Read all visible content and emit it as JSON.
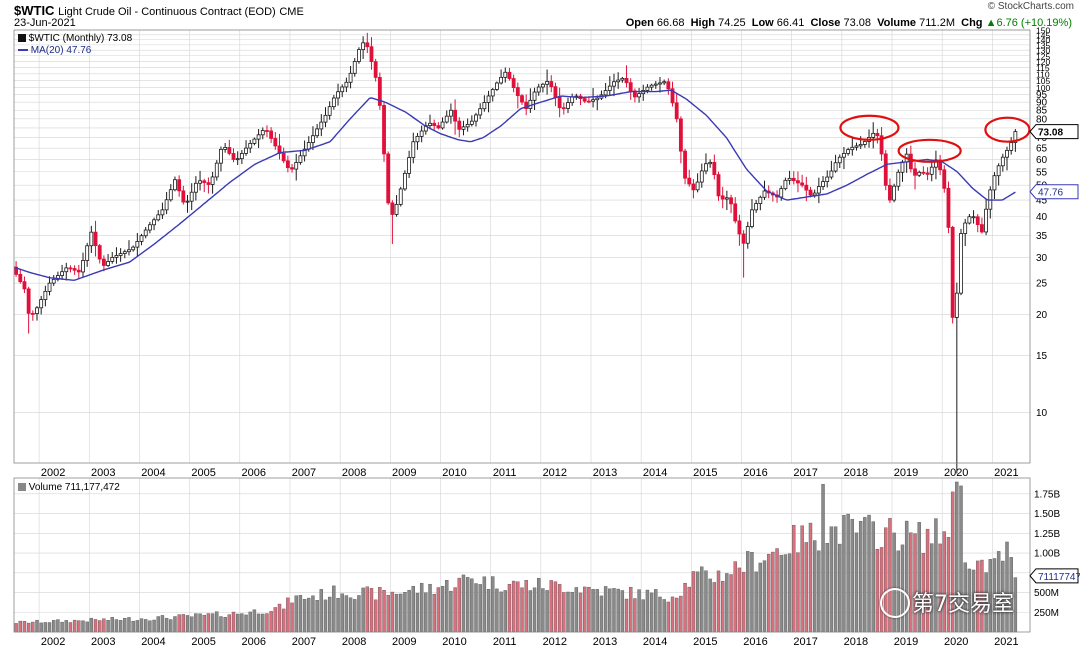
{
  "header": {
    "symbol": "$WTIC",
    "description": "Light Crude Oil - Continuous Contract (EOD)",
    "exchange": "CME",
    "watermark": "© StockCharts.com",
    "date": "23-Jun-2021",
    "open_label": "Open",
    "open": "66.68",
    "high_label": "High",
    "high": "74.25",
    "low_label": "Low",
    "low": "66.41",
    "close_label": "Close",
    "close": "73.08",
    "volume_label": "Volume",
    "volume": "711.2M",
    "chg_label": "Chg",
    "chg": "▲6.76 (+10.19%)"
  },
  "legend": {
    "price": "$WTIC (Monthly) 73.08",
    "ma": "MA(20) 47.76",
    "volume": "Volume 711,177,472"
  },
  "badges": {
    "last_price": "73.08",
    "ma_value": "47.76",
    "volume_value": "711177472"
  },
  "brand": {
    "text": "第7交易室"
  },
  "colors": {
    "up": "#1a1a1a",
    "down": "#e0103a",
    "ma": "#3a3ab5",
    "vol_up": "#8a8a8a",
    "vol_down": "#d9707e",
    "grid": "#d4d4d4",
    "highlight": "#e01010"
  },
  "chart_data": [
    {
      "type": "candlestick",
      "title": "$WTIC (Monthly)",
      "scale": "log",
      "ylim": [
        7,
        150
      ],
      "y_ticks": [
        10,
        15,
        20,
        25,
        30,
        35,
        40,
        45,
        50,
        55,
        60,
        65,
        70,
        75,
        80,
        85,
        90,
        95,
        100,
        105,
        110,
        115,
        120,
        125,
        130,
        135,
        140,
        145,
        150
      ],
      "x_ticks": [
        "2002",
        "2003",
        "2004",
        "2005",
        "2006",
        "2007",
        "2008",
        "2009",
        "2010",
        "2011",
        "2012",
        "2013",
        "2014",
        "2015",
        "2016",
        "2017",
        "2018",
        "2019",
        "2020",
        "2021"
      ],
      "xlim_years": [
        2001.5,
        2021.75
      ],
      "grid": true,
      "anchors": [
        [
          2001.5,
          28
        ],
        [
          2001.75,
          24
        ],
        [
          2001.85,
          19.5
        ],
        [
          2002.0,
          21
        ],
        [
          2002.25,
          25
        ],
        [
          2002.6,
          28
        ],
        [
          2002.85,
          27
        ],
        [
          2003.08,
          36
        ],
        [
          2003.3,
          28
        ],
        [
          2003.5,
          30
        ],
        [
          2003.9,
          32
        ],
        [
          2004.2,
          37
        ],
        [
          2004.5,
          42
        ],
        [
          2004.75,
          52
        ],
        [
          2004.95,
          43
        ],
        [
          2005.2,
          52
        ],
        [
          2005.45,
          50
        ],
        [
          2005.7,
          67
        ],
        [
          2005.95,
          59
        ],
        [
          2006.2,
          66
        ],
        [
          2006.55,
          75
        ],
        [
          2006.9,
          60
        ],
        [
          2007.05,
          55
        ],
        [
          2007.4,
          67
        ],
        [
          2007.75,
          82
        ],
        [
          2007.95,
          95
        ],
        [
          2008.2,
          105
        ],
        [
          2008.45,
          135
        ],
        [
          2008.55,
          139
        ],
        [
          2008.7,
          115
        ],
        [
          2008.8,
          100
        ],
        [
          2008.9,
          68
        ],
        [
          2008.98,
          45
        ],
        [
          2009.1,
          40
        ],
        [
          2009.3,
          52
        ],
        [
          2009.5,
          68
        ],
        [
          2009.8,
          78
        ],
        [
          2010.0,
          75
        ],
        [
          2010.25,
          85
        ],
        [
          2010.4,
          74
        ],
        [
          2010.65,
          78
        ],
        [
          2010.9,
          89
        ],
        [
          2011.2,
          105
        ],
        [
          2011.35,
          112
        ],
        [
          2011.55,
          96
        ],
        [
          2011.75,
          86
        ],
        [
          2011.95,
          99
        ],
        [
          2012.2,
          105
        ],
        [
          2012.45,
          84
        ],
        [
          2012.7,
          95
        ],
        [
          2012.95,
          90
        ],
        [
          2013.2,
          93
        ],
        [
          2013.5,
          104
        ],
        [
          2013.7,
          107
        ],
        [
          2013.9,
          93
        ],
        [
          2014.2,
          101
        ],
        [
          2014.5,
          104
        ],
        [
          2014.6,
          98
        ],
        [
          2014.75,
          80
        ],
        [
          2014.9,
          53
        ],
        [
          2015.1,
          48
        ],
        [
          2015.3,
          58
        ],
        [
          2015.45,
          59
        ],
        [
          2015.6,
          45
        ],
        [
          2015.8,
          46
        ],
        [
          2015.95,
          37
        ],
        [
          2016.08,
          33
        ],
        [
          2016.25,
          42
        ],
        [
          2016.5,
          48
        ],
        [
          2016.75,
          46
        ],
        [
          2016.95,
          53
        ],
        [
          2017.25,
          50
        ],
        [
          2017.45,
          46
        ],
        [
          2017.6,
          50
        ],
        [
          2017.8,
          54
        ],
        [
          2017.95,
          60
        ],
        [
          2018.2,
          65
        ],
        [
          2018.45,
          67
        ],
        [
          2018.7,
          73
        ],
        [
          2018.8,
          69
        ],
        [
          2018.9,
          51
        ],
        [
          2019.0,
          45
        ],
        [
          2019.2,
          57
        ],
        [
          2019.35,
          63
        ],
        [
          2019.45,
          53
        ],
        [
          2019.6,
          55
        ],
        [
          2019.75,
          54
        ],
        [
          2019.95,
          61
        ],
        [
          2020.05,
          51
        ],
        [
          2020.15,
          45
        ],
        [
          2020.22,
          20
        ],
        [
          2020.3,
          19
        ],
        [
          2020.4,
          35
        ],
        [
          2020.55,
          40
        ],
        [
          2020.7,
          40
        ],
        [
          2020.82,
          35
        ],
        [
          2020.95,
          45
        ],
        [
          2021.05,
          52
        ],
        [
          2021.2,
          59
        ],
        [
          2021.3,
          63
        ],
        [
          2021.4,
          66
        ],
        [
          2021.47,
          73.08
        ]
      ],
      "extremes": {
        "high_2008": 147,
        "low_2009": 33,
        "low_2016": 26,
        "low_2020": 6.5,
        "low_2001": 17.5
      }
    },
    {
      "type": "line",
      "name": "MA(20)",
      "anchors": [
        [
          2001.5,
          28
        ],
        [
          2001.8,
          27
        ],
        [
          2002.2,
          26
        ],
        [
          2002.7,
          25.5
        ],
        [
          2003.3,
          27.5
        ],
        [
          2003.8,
          29
        ],
        [
          2004.3,
          33
        ],
        [
          2004.8,
          38
        ],
        [
          2005.3,
          44
        ],
        [
          2005.8,
          51
        ],
        [
          2006.3,
          58
        ],
        [
          2006.8,
          63
        ],
        [
          2007.3,
          64
        ],
        [
          2007.8,
          68
        ],
        [
          2008.2,
          80
        ],
        [
          2008.6,
          93
        ],
        [
          2008.9,
          90
        ],
        [
          2009.3,
          84
        ],
        [
          2009.7,
          76
        ],
        [
          2010.0,
          72
        ],
        [
          2010.35,
          69
        ],
        [
          2010.6,
          68
        ],
        [
          2010.85,
          70
        ],
        [
          2011.2,
          76
        ],
        [
          2011.6,
          86
        ],
        [
          2012.0,
          90
        ],
        [
          2012.4,
          94
        ],
        [
          2012.8,
          93
        ],
        [
          2013.3,
          94
        ],
        [
          2013.8,
          97
        ],
        [
          2014.3,
          97
        ],
        [
          2014.6,
          98
        ],
        [
          2014.9,
          92
        ],
        [
          2015.3,
          82
        ],
        [
          2015.7,
          70
        ],
        [
          2016.1,
          56
        ],
        [
          2016.5,
          48
        ],
        [
          2016.9,
          45
        ],
        [
          2017.3,
          46
        ],
        [
          2017.7,
          47
        ],
        [
          2018.1,
          50
        ],
        [
          2018.5,
          54
        ],
        [
          2018.9,
          58
        ],
        [
          2019.3,
          59
        ],
        [
          2019.7,
          60
        ],
        [
          2020.0,
          59
        ],
        [
          2020.3,
          55
        ],
        [
          2020.6,
          49
        ],
        [
          2020.9,
          45
        ],
        [
          2021.2,
          45
        ],
        [
          2021.47,
          47.76
        ]
      ]
    },
    {
      "type": "bar",
      "name": "Volume",
      "y_ticks_labels": [
        "250M",
        "500M",
        "750M",
        "1.00B",
        "1.25B",
        "1.50B",
        "1.75B"
      ],
      "y_ticks_values": [
        250,
        500,
        750,
        1000,
        1250,
        1500,
        1750
      ],
      "ylim": [
        0,
        1950
      ],
      "unit": "M",
      "anchors": [
        [
          2001.5,
          120
        ],
        [
          2002.0,
          130
        ],
        [
          2003.0,
          150
        ],
        [
          2004.0,
          170
        ],
        [
          2005.0,
          200
        ],
        [
          2006.0,
          240
        ],
        [
          2006.8,
          310
        ],
        [
          2007.0,
          420
        ],
        [
          2007.6,
          470
        ],
        [
          2008.0,
          520
        ],
        [
          2008.6,
          480
        ],
        [
          2009.0,
          500
        ],
        [
          2009.5,
          540
        ],
        [
          2010.0,
          580
        ],
        [
          2010.6,
          690
        ],
        [
          2011.0,
          620
        ],
        [
          2011.5,
          600
        ],
        [
          2012.0,
          590
        ],
        [
          2012.5,
          580
        ],
        [
          2013.0,
          540
        ],
        [
          2013.6,
          500
        ],
        [
          2014.0,
          480
        ],
        [
          2014.6,
          460
        ],
        [
          2015.0,
          700
        ],
        [
          2015.5,
          720
        ],
        [
          2016.0,
          860
        ],
        [
          2016.5,
          990
        ],
        [
          2017.0,
          1150
        ],
        [
          2017.5,
          1250
        ],
        [
          2018.0,
          1300
        ],
        [
          2018.5,
          1280
        ],
        [
          2019.0,
          1250
        ],
        [
          2019.5,
          1200
        ],
        [
          2020.0,
          1250
        ],
        [
          2020.25,
          1800
        ],
        [
          2020.5,
          750
        ],
        [
          2020.8,
          820
        ],
        [
          2021.0,
          880
        ],
        [
          2021.2,
          1000
        ],
        [
          2021.47,
          711
        ]
      ],
      "spikes": [
        [
          2017.55,
          1870
        ],
        [
          2020.22,
          1900
        ],
        [
          2020.32,
          1850
        ],
        [
          2021.22,
          1140
        ]
      ]
    }
  ]
}
